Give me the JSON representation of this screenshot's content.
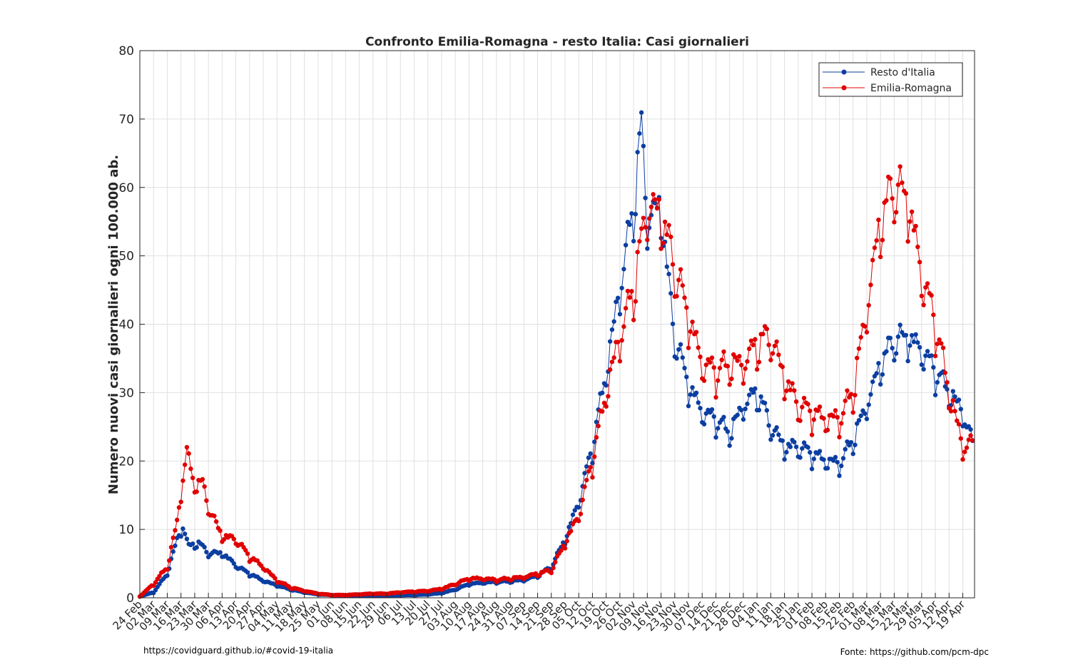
{
  "chart_data": {
    "type": "line",
    "title": "Confronto Emilia-Romagna - resto Italia: Casi giornalieri",
    "xlabel": "",
    "ylabel": "Numero nuovi casi giornalieri ogni 100.000 ab.",
    "ylim": [
      0,
      80
    ],
    "yticks": [
      0,
      10,
      20,
      30,
      40,
      50,
      60,
      70,
      80
    ],
    "grid": true,
    "legend_position": "top-right",
    "x_start": "24 Feb",
    "x_end": "24 Apr",
    "xtick_labels": [
      "24 Feb",
      "02 Mar",
      "09 Mar",
      "16 Mar",
      "23 Mar",
      "30 Mar",
      "06 Apr",
      "13 Apr",
      "20 Apr",
      "27 Apr",
      "04 May",
      "11 May",
      "18 May",
      "25 May",
      "01 Jun",
      "08 Jun",
      "15 Jun",
      "22 Jun",
      "29 Jun",
      "06 Jul",
      "13 Jul",
      "20 Jul",
      "27 Jul",
      "03 Aug",
      "10 Aug",
      "17 Aug",
      "24 Aug",
      "31 Aug",
      "07 Sep",
      "14 Sep",
      "21 Sep",
      "28 Sep",
      "05 Oct",
      "12 Oct",
      "19 Oct",
      "26 Oct",
      "02 Nov",
      "09 Nov",
      "16 Nov",
      "23 Nov",
      "30 Nov",
      "07 Dec",
      "14 Dec",
      "21 Dec",
      "28 Dec",
      "04 Jan",
      "11 Jan",
      "18 Jan",
      "25 Jan",
      "01 Feb",
      "08 Feb",
      "15 Feb",
      "22 Feb",
      "01 Mar",
      "08 Mar",
      "15 Mar",
      "22 Mar",
      "29 Mar",
      "05 Apr",
      "12 Apr",
      "19 Apr"
    ],
    "series": [
      {
        "name": "Resto d'Italia",
        "color": "#0b3ea1",
        "keypoints": [
          [
            0,
            0.2
          ],
          [
            7,
            0.8
          ],
          [
            14,
            3.5
          ],
          [
            19,
            8.5
          ],
          [
            22,
            10.3
          ],
          [
            25,
            7.5
          ],
          [
            30,
            8.0
          ],
          [
            35,
            6.5
          ],
          [
            42,
            6.5
          ],
          [
            50,
            4.5
          ],
          [
            56,
            3.5
          ],
          [
            63,
            2.5
          ],
          [
            70,
            1.8
          ],
          [
            77,
            1.2
          ],
          [
            84,
            0.8
          ],
          [
            91,
            0.5
          ],
          [
            98,
            0.4
          ],
          [
            105,
            0.3
          ],
          [
            112,
            0.3
          ],
          [
            119,
            0.3
          ],
          [
            126,
            0.3
          ],
          [
            133,
            0.4
          ],
          [
            140,
            0.4
          ],
          [
            147,
            0.5
          ],
          [
            154,
            0.7
          ],
          [
            161,
            1.2
          ],
          [
            168,
            2.0
          ],
          [
            175,
            2.2
          ],
          [
            182,
            2.3
          ],
          [
            189,
            2.4
          ],
          [
            196,
            2.6
          ],
          [
            203,
            3.2
          ],
          [
            210,
            4.5
          ],
          [
            217,
            8.5
          ],
          [
            224,
            14.0
          ],
          [
            231,
            22.0
          ],
          [
            238,
            33.0
          ],
          [
            245,
            45.0
          ],
          [
            252,
            57.0
          ],
          [
            256,
            68.5
          ],
          [
            259,
            55.0
          ],
          [
            266,
            57.0
          ],
          [
            270,
            45.0
          ],
          [
            273,
            38.0
          ],
          [
            280,
            31.0
          ],
          [
            287,
            27.0
          ],
          [
            294,
            26.0
          ],
          [
            301,
            24.0
          ],
          [
            308,
            28.0
          ],
          [
            315,
            30.0
          ],
          [
            322,
            25.0
          ],
          [
            329,
            22.0
          ],
          [
            336,
            22.0
          ],
          [
            343,
            21.0
          ],
          [
            350,
            20.0
          ],
          [
            357,
            19.5
          ],
          [
            364,
            23.0
          ],
          [
            371,
            28.0
          ],
          [
            378,
            34.0
          ],
          [
            385,
            37.5
          ],
          [
            392,
            38.0
          ],
          [
            399,
            36.0
          ],
          [
            406,
            33.0
          ],
          [
            413,
            30.0
          ],
          [
            420,
            27.0
          ],
          [
            425,
            22.5
          ]
        ],
        "amplitude": 0.14
      },
      {
        "name": "Emilia-Romagna",
        "color": "#e00000",
        "keypoints": [
          [
            0,
            0.2
          ],
          [
            7,
            2.0
          ],
          [
            14,
            4.5
          ],
          [
            19,
            11.0
          ],
          [
            22,
            17.5
          ],
          [
            24,
            21.5
          ],
          [
            27,
            17.0
          ],
          [
            32,
            16.5
          ],
          [
            36,
            12.5
          ],
          [
            42,
            9.0
          ],
          [
            49,
            8.5
          ],
          [
            56,
            6.0
          ],
          [
            63,
            4.5
          ],
          [
            70,
            2.5
          ],
          [
            77,
            1.5
          ],
          [
            84,
            1.0
          ],
          [
            91,
            0.6
          ],
          [
            98,
            0.4
          ],
          [
            105,
            0.4
          ],
          [
            112,
            0.5
          ],
          [
            119,
            0.6
          ],
          [
            126,
            0.6
          ],
          [
            133,
            0.8
          ],
          [
            140,
            0.9
          ],
          [
            147,
            1.0
          ],
          [
            154,
            1.3
          ],
          [
            161,
            2.0
          ],
          [
            168,
            2.8
          ],
          [
            175,
            2.8
          ],
          [
            182,
            2.6
          ],
          [
            189,
            2.8
          ],
          [
            196,
            3.0
          ],
          [
            203,
            3.5
          ],
          [
            210,
            4.0
          ],
          [
            217,
            8.0
          ],
          [
            224,
            12.0
          ],
          [
            231,
            20.0
          ],
          [
            238,
            30.0
          ],
          [
            245,
            38.0
          ],
          [
            252,
            45.0
          ],
          [
            259,
            57.0
          ],
          [
            266,
            56.0
          ],
          [
            273,
            48.0
          ],
          [
            280,
            41.0
          ],
          [
            287,
            34.0
          ],
          [
            294,
            33.0
          ],
          [
            301,
            34.0
          ],
          [
            308,
            34.0
          ],
          [
            315,
            37.0
          ],
          [
            322,
            38.0
          ],
          [
            329,
            32.0
          ],
          [
            336,
            28.0
          ],
          [
            343,
            27.0
          ],
          [
            350,
            26.0
          ],
          [
            357,
            26.0
          ],
          [
            364,
            30.0
          ],
          [
            371,
            42.0
          ],
          [
            378,
            55.0
          ],
          [
            385,
            60.0
          ],
          [
            392,
            58.0
          ],
          [
            399,
            47.0
          ],
          [
            406,
            40.0
          ],
          [
            413,
            30.0
          ],
          [
            420,
            22.0
          ],
          [
            425,
            22.5
          ]
        ],
        "amplitude": 0.16
      }
    ]
  },
  "footer": {
    "left": "https://covidguard.github.io/#covid-19-italia",
    "right": "Fonte: https://github.com/pcm-dpc"
  }
}
